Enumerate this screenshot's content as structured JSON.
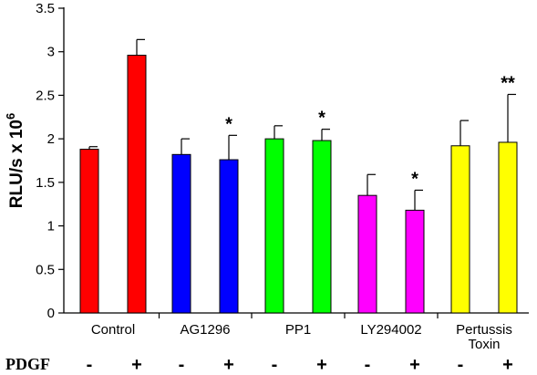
{
  "chart_data": {
    "type": "bar",
    "ylabel": "RLU/s x 10",
    "ylabel_superscript": "6",
    "ylim": [
      0,
      3.5
    ],
    "yticks": [
      "0",
      "0.5",
      "1",
      "1.5",
      "2",
      "2.5",
      "3",
      "3.5"
    ],
    "grid": false,
    "groups": [
      {
        "label_lines": [
          "Control"
        ],
        "color": "#FF0000",
        "bars": [
          {
            "pdgf": "-",
            "value": 1.88,
            "error": 0.03,
            "annotation": ""
          },
          {
            "pdgf": "+",
            "value": 2.96,
            "error": 0.18,
            "annotation": ""
          }
        ]
      },
      {
        "label_lines": [
          "AG1296"
        ],
        "color": "#0000FF",
        "bars": [
          {
            "pdgf": "-",
            "value": 1.82,
            "error": 0.18,
            "annotation": ""
          },
          {
            "pdgf": "+",
            "value": 1.76,
            "error": 0.28,
            "annotation": "*"
          }
        ]
      },
      {
        "label_lines": [
          "PP1"
        ],
        "color": "#00FF00",
        "bars": [
          {
            "pdgf": "-",
            "value": 2.0,
            "error": 0.15,
            "annotation": ""
          },
          {
            "pdgf": "+",
            "value": 1.98,
            "error": 0.13,
            "annotation": "*"
          }
        ]
      },
      {
        "label_lines": [
          "LY294002"
        ],
        "color": "#FF00FF",
        "bars": [
          {
            "pdgf": "-",
            "value": 1.35,
            "error": 0.24,
            "annotation": ""
          },
          {
            "pdgf": "+",
            "value": 1.18,
            "error": 0.23,
            "annotation": "*"
          }
        ]
      },
      {
        "label_lines": [
          "Pertussis",
          "Toxin"
        ],
        "color": "#FFFF00",
        "bars": [
          {
            "pdgf": "-",
            "value": 1.92,
            "error": 0.29,
            "annotation": ""
          },
          {
            "pdgf": "+",
            "value": 1.96,
            "error": 0.55,
            "annotation": "**"
          }
        ]
      }
    ],
    "row_label": "PDGF"
  }
}
